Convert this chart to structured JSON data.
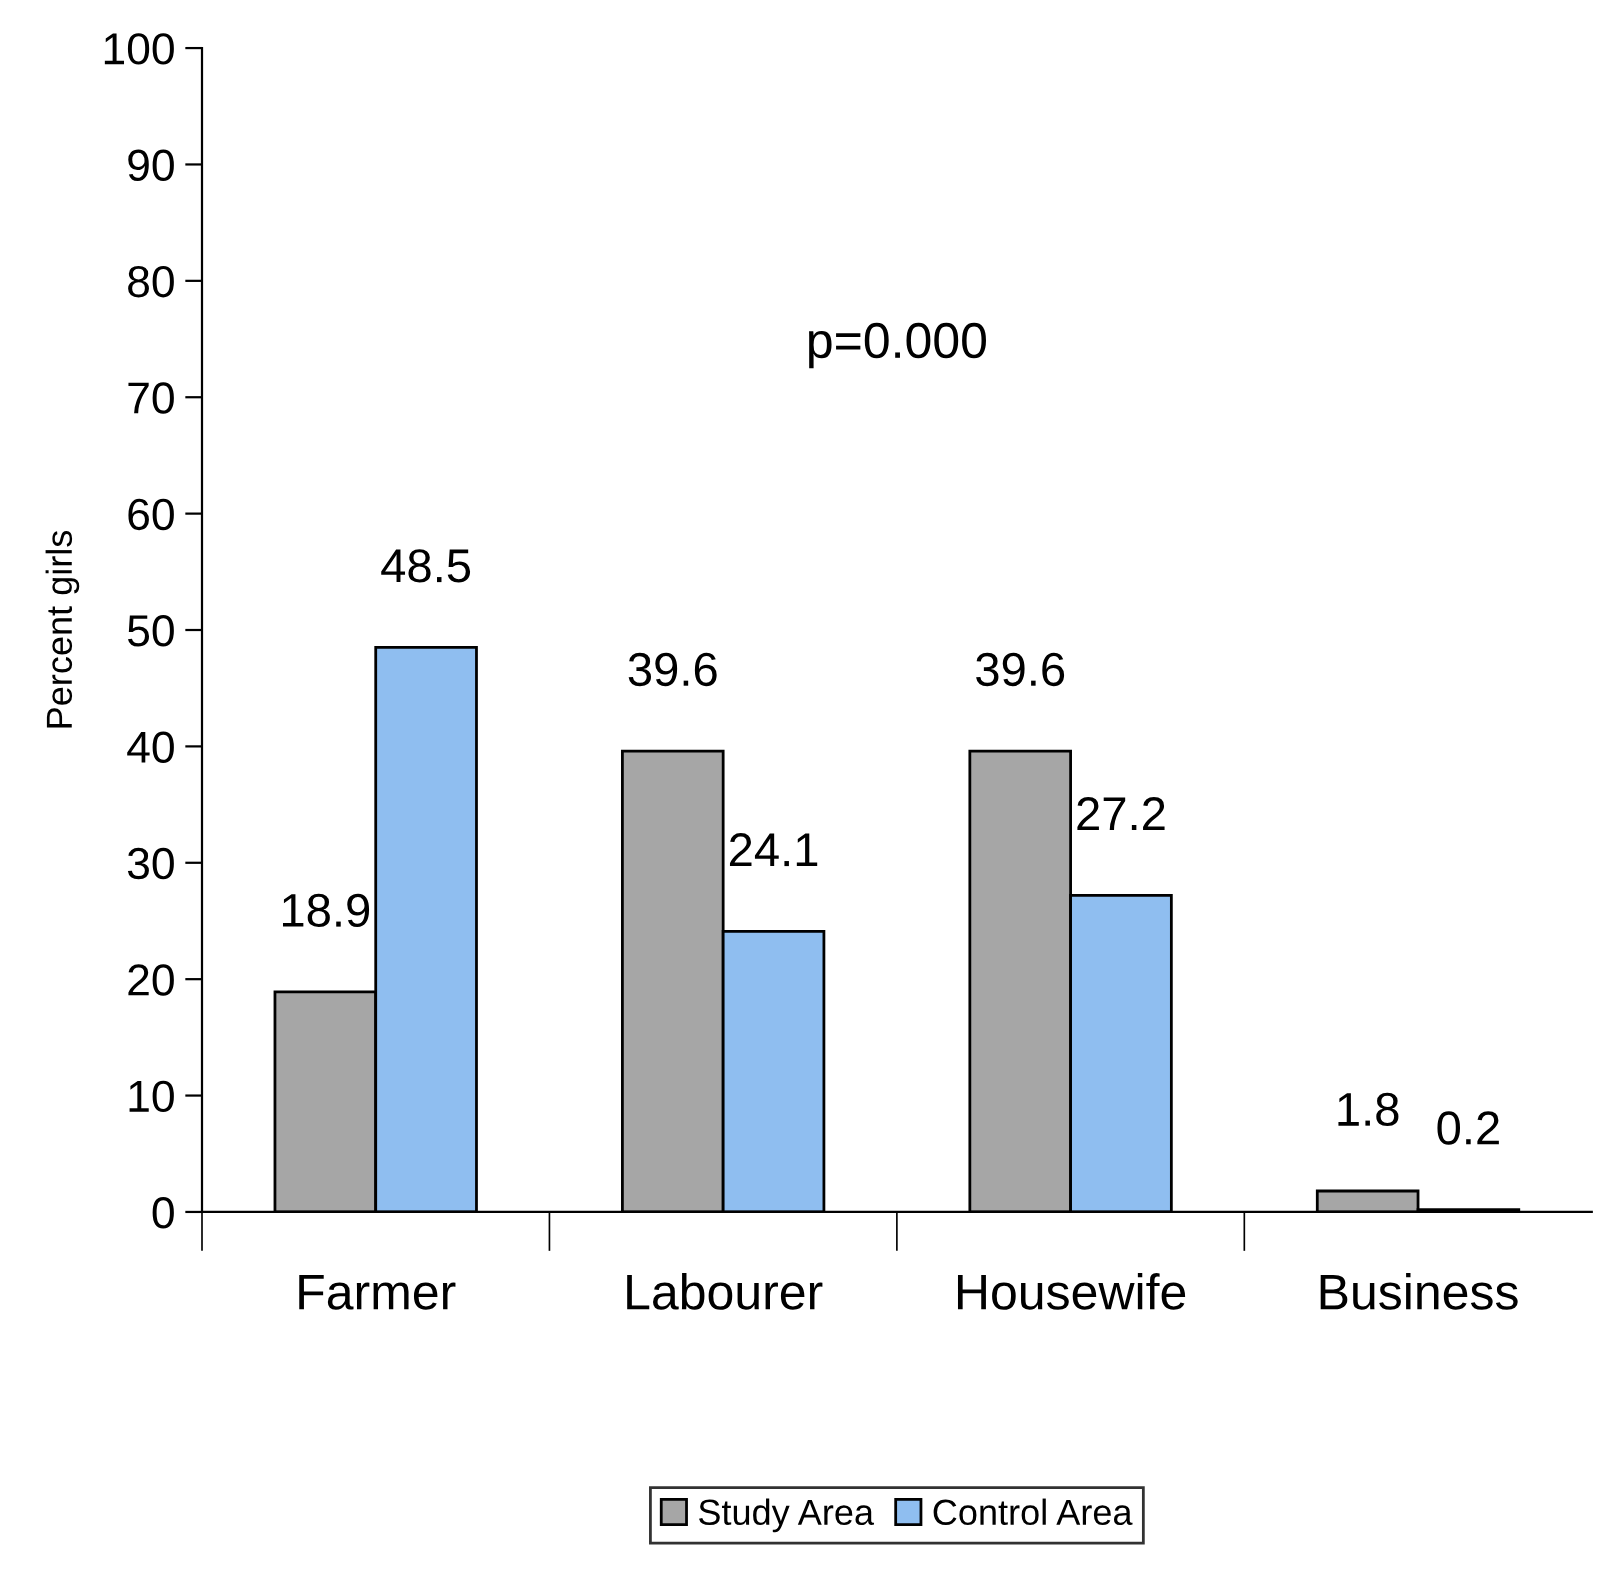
{
  "chart_data": {
    "type": "bar",
    "ylabel": "Percent girls",
    "categories": [
      "Farmer",
      "Labourer",
      "Housewife",
      "Business"
    ],
    "series": [
      {
        "name": "Study Area",
        "color": "#a6a6a6",
        "values": [
          18.9,
          39.6,
          39.6,
          1.8
        ]
      },
      {
        "name": "Control Area",
        "color": "#8fbef0",
        "values": [
          48.5,
          24.1,
          27.2,
          0.2
        ]
      }
    ],
    "ylim": [
      0,
      100
    ],
    "yticks": [
      0,
      10,
      20,
      30,
      40,
      50,
      60,
      70,
      80,
      90,
      100
    ],
    "data_labels": true,
    "grid": false,
    "legend": "bottom",
    "annotations": [
      "p=0.000"
    ]
  }
}
